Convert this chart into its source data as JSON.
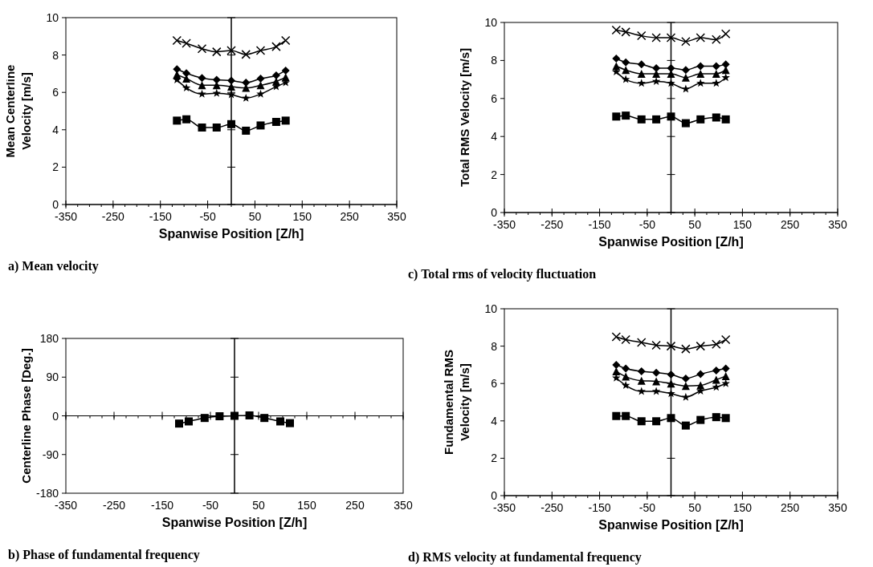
{
  "chart_data": [
    {
      "type": "line",
      "title": "a) Mean velocity",
      "xlabel": "Spanwise Position [Z/h]",
      "ylabel": "Mean Centerline Velocity [m/s]",
      "xlim": [
        -350,
        350
      ],
      "xticks": [
        -350,
        -250,
        -150,
        -50,
        50,
        150,
        250,
        350
      ],
      "ylim": [
        0,
        10
      ],
      "yticks": [
        0,
        2,
        4,
        6,
        8,
        10
      ],
      "ref_lines": [
        {
          "axis": "x",
          "value": 0
        }
      ],
      "x": [
        -115,
        -95,
        -62,
        -31,
        0,
        31,
        62,
        95,
        115
      ],
      "series": [
        {
          "color": "#000000",
          "marker": "cross",
          "values": [
            8.78,
            8.63,
            8.34,
            8.17,
            8.24,
            8.03,
            8.24,
            8.45,
            8.78
          ]
        },
        {
          "color": "#000000",
          "marker": "diamond",
          "values": [
            7.24,
            7.03,
            6.77,
            6.67,
            6.63,
            6.52,
            6.74,
            6.91,
            7.17
          ]
        },
        {
          "color": "#000000",
          "marker": "triangle",
          "values": [
            6.95,
            6.74,
            6.38,
            6.38,
            6.31,
            6.24,
            6.38,
            6.59,
            6.81
          ]
        },
        {
          "color": "#000000",
          "marker": "star",
          "values": [
            6.67,
            6.24,
            5.91,
            5.95,
            5.88,
            5.69,
            5.91,
            6.31,
            6.52
          ]
        },
        {
          "color": "#000000",
          "marker": "square",
          "values": [
            4.49,
            4.56,
            4.12,
            4.12,
            4.3,
            3.95,
            4.23,
            4.42,
            4.49
          ]
        }
      ]
    },
    {
      "type": "line",
      "title": "b) Phase of fundamental frequency",
      "xlabel": "Spanwise Position [Z/h]",
      "ylabel": "Centerline Phase [Deg.]",
      "xlim": [
        -350,
        350
      ],
      "xticks": [
        -350,
        -250,
        -150,
        -50,
        50,
        150,
        250,
        350
      ],
      "ylim": [
        -180,
        180
      ],
      "yticks": [
        -180,
        -90,
        0,
        90,
        180
      ],
      "ref_lines": [
        {
          "axis": "x",
          "value": 0
        }
      ],
      "x": [
        -115,
        -95,
        -62,
        -31,
        0,
        31,
        62,
        95,
        115
      ],
      "series": [
        {
          "color": "#000000",
          "marker": "square",
          "values": [
            -18,
            -13,
            -5,
            -1,
            0,
            1,
            -5,
            -13,
            -17
          ]
        }
      ]
    },
    {
      "type": "line",
      "title": "c) Total rms of velocity fluctuation",
      "xlabel": "Spanwise Position [Z/h]",
      "ylabel": "Total RMS Velocity [m/s]",
      "xlim": [
        -350,
        350
      ],
      "xticks": [
        -350,
        -250,
        -150,
        -50,
        50,
        150,
        250,
        350
      ],
      "ylim": [
        0,
        10
      ],
      "yticks": [
        0,
        2,
        4,
        6,
        8,
        10
      ],
      "ref_lines": [
        {
          "axis": "x",
          "value": 0
        }
      ],
      "x": [
        -115,
        -95,
        -62,
        -31,
        0,
        31,
        62,
        95,
        115
      ],
      "series": [
        {
          "color": "#000000",
          "marker": "cross",
          "values": [
            9.6,
            9.5,
            9.3,
            9.2,
            9.2,
            9.0,
            9.2,
            9.1,
            9.4
          ]
        },
        {
          "color": "#000000",
          "marker": "diamond",
          "values": [
            8.1,
            7.9,
            7.8,
            7.6,
            7.6,
            7.5,
            7.7,
            7.7,
            7.8
          ]
        },
        {
          "color": "#000000",
          "marker": "triangle",
          "values": [
            7.7,
            7.5,
            7.3,
            7.3,
            7.3,
            7.1,
            7.3,
            7.3,
            7.5
          ]
        },
        {
          "color": "#000000",
          "marker": "star",
          "values": [
            7.4,
            7.0,
            6.8,
            6.9,
            6.8,
            6.5,
            6.8,
            6.8,
            7.1
          ]
        },
        {
          "color": "#000000",
          "marker": "square",
          "values": [
            5.05,
            5.1,
            4.9,
            4.9,
            5.05,
            4.7,
            4.9,
            5.0,
            4.9
          ]
        }
      ]
    },
    {
      "type": "line",
      "title": "d) RMS velocity at fundamental frequency",
      "xlabel": "Spanwise Position [Z/h]",
      "ylabel": "Fundamental RMS Velocity [m/s]",
      "xlim": [
        -350,
        350
      ],
      "xticks": [
        -350,
        -250,
        -150,
        -50,
        50,
        150,
        250,
        350
      ],
      "ylim": [
        0,
        10
      ],
      "yticks": [
        0,
        2,
        4,
        6,
        8,
        10
      ],
      "ref_lines": [
        {
          "axis": "x",
          "value": 0
        }
      ],
      "x": [
        -115,
        -95,
        -62,
        -31,
        0,
        31,
        62,
        95,
        115
      ],
      "series": [
        {
          "color": "#000000",
          "marker": "cross",
          "values": [
            8.5,
            8.35,
            8.2,
            8.05,
            8.0,
            7.85,
            8.0,
            8.1,
            8.35
          ]
        },
        {
          "color": "#000000",
          "marker": "diamond",
          "values": [
            7.0,
            6.8,
            6.65,
            6.58,
            6.48,
            6.27,
            6.5,
            6.7,
            6.8
          ]
        },
        {
          "color": "#000000",
          "marker": "triangle",
          "values": [
            6.65,
            6.37,
            6.15,
            6.12,
            6.0,
            5.87,
            5.9,
            6.2,
            6.4
          ]
        },
        {
          "color": "#000000",
          "marker": "star",
          "values": [
            6.3,
            5.9,
            5.58,
            5.58,
            5.46,
            5.27,
            5.6,
            5.8,
            6.0
          ]
        },
        {
          "color": "#000000",
          "marker": "square",
          "values": [
            4.26,
            4.26,
            3.98,
            3.98,
            4.15,
            3.75,
            4.05,
            4.2,
            4.15
          ]
        }
      ]
    }
  ]
}
